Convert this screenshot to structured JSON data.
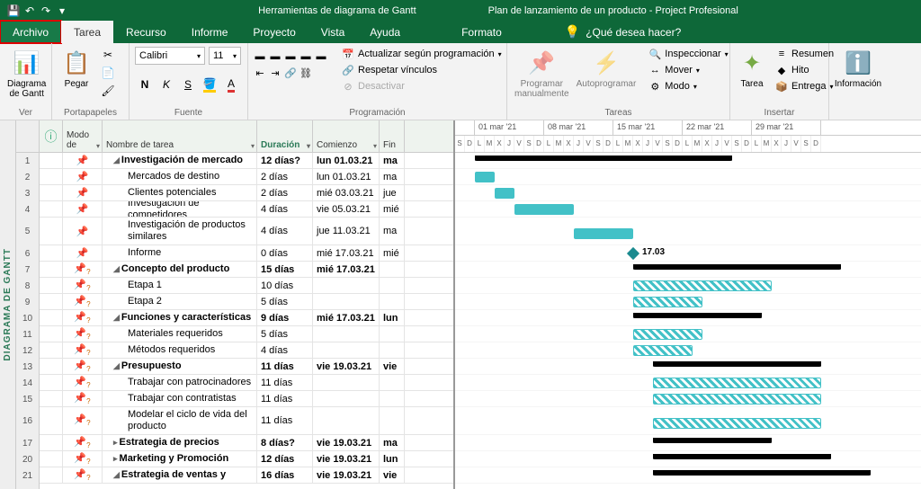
{
  "titlebar": {
    "tools_title": "Herramientas de diagrama de Gantt",
    "doc_title": "Plan de lanzamiento de un producto - Project Profesional"
  },
  "tabs": {
    "archivo": "Archivo",
    "tarea": "Tarea",
    "recurso": "Recurso",
    "informe": "Informe",
    "proyecto": "Proyecto",
    "vista": "Vista",
    "ayuda": "Ayuda",
    "formato": "Formato",
    "search": "¿Qué desea hacer?"
  },
  "ribbon": {
    "view": {
      "btn": "Diagrama de Gantt",
      "label": "Ver"
    },
    "clipboard": {
      "btn": "Pegar",
      "label": "Portapapeles"
    },
    "font": {
      "family": "Calibri",
      "size": "11",
      "label": "Fuente"
    },
    "schedule": {
      "update": "Actualizar según programación",
      "respect": "Respetar vínculos",
      "deactivate": "Desactivar",
      "label": "Programación"
    },
    "tasks": {
      "manual": "Programar manualmente",
      "auto": "Autoprogramar",
      "inspect": "Inspeccionar",
      "move": "Mover",
      "mode": "Modo",
      "label": "Tareas"
    },
    "insert": {
      "task": "Tarea",
      "summary": "Resumen",
      "milestone": "Hito",
      "deliverable": "Entrega",
      "label": "Insertar"
    },
    "info": {
      "btn": "Información"
    }
  },
  "grid": {
    "headers": {
      "mode": "Modo de",
      "name": "Nombre de tarea",
      "duration": "Duración",
      "start": "Comienzo",
      "finish": "Fin"
    },
    "rows": [
      {
        "n": "1",
        "mode": "auto",
        "name": "Investigación de mercado",
        "dur": "12 días?",
        "start": "lun 01.03.21",
        "fin": "ma",
        "bold": true,
        "indent": 0,
        "collapse": true
      },
      {
        "n": "2",
        "mode": "auto",
        "name": "Mercados de destino",
        "dur": "2 días",
        "start": "lun 01.03.21",
        "fin": "ma",
        "indent": 1
      },
      {
        "n": "3",
        "mode": "auto",
        "name": "Clientes potenciales",
        "dur": "2 días",
        "start": "mié 03.03.21",
        "fin": "jue",
        "indent": 1
      },
      {
        "n": "4",
        "mode": "auto",
        "name": "Investigación de competidores",
        "dur": "4 días",
        "start": "vie 05.03.21",
        "fin": "mié",
        "indent": 1
      },
      {
        "n": "5",
        "mode": "auto",
        "name": "Investigación de productos similares",
        "dur": "4 días",
        "start": "jue 11.03.21",
        "fin": "ma",
        "indent": 1,
        "tall": true
      },
      {
        "n": "6",
        "mode": "auto",
        "name": "Informe",
        "dur": "0 días",
        "start": "mié 17.03.21",
        "fin": "mié",
        "indent": 1
      },
      {
        "n": "7",
        "mode": "manual",
        "name": "Concepto del producto",
        "dur": "15 días",
        "start": "mié 17.03.21",
        "fin": "",
        "bold": true,
        "indent": 0,
        "collapse": true
      },
      {
        "n": "8",
        "mode": "manual",
        "name": "Etapa 1",
        "dur": "10 días",
        "start": "",
        "fin": "",
        "indent": 1
      },
      {
        "n": "9",
        "mode": "manual",
        "name": "Etapa 2",
        "dur": "5 días",
        "start": "",
        "fin": "",
        "indent": 1
      },
      {
        "n": "10",
        "mode": "manual",
        "name": "Funciones y características",
        "dur": "9 días",
        "start": "mié 17.03.21",
        "fin": "lun",
        "bold": true,
        "indent": 0,
        "collapse": true
      },
      {
        "n": "11",
        "mode": "manual",
        "name": "Materiales requeridos",
        "dur": "5 días",
        "start": "",
        "fin": "",
        "indent": 1
      },
      {
        "n": "12",
        "mode": "manual",
        "name": "Métodos requeridos",
        "dur": "4 días",
        "start": "",
        "fin": "",
        "indent": 1
      },
      {
        "n": "13",
        "mode": "manual",
        "name": "Presupuesto",
        "dur": "11 días",
        "start": "vie 19.03.21",
        "fin": "vie",
        "bold": true,
        "indent": 0,
        "collapse": true
      },
      {
        "n": "14",
        "mode": "manual",
        "name": "Trabajar con patrocinadores",
        "dur": "11 días",
        "start": "",
        "fin": "",
        "indent": 1
      },
      {
        "n": "15",
        "mode": "manual",
        "name": "Trabajar con contratistas",
        "dur": "11 días",
        "start": "",
        "fin": "",
        "indent": 1
      },
      {
        "n": "16",
        "mode": "manual",
        "name": "Modelar el ciclo de vida del producto",
        "dur": "11 días",
        "start": "",
        "fin": "",
        "indent": 1,
        "tall": true
      },
      {
        "n": "17",
        "mode": "manual",
        "name": "Estrategia de precios",
        "dur": "8 días?",
        "start": "vie 19.03.21",
        "fin": "ma",
        "bold": true,
        "indent": 0,
        "collapse": false
      },
      {
        "n": "20",
        "mode": "manual",
        "name": "Marketing y Promoción",
        "dur": "12 días",
        "start": "vie 19.03.21",
        "fin": "lun",
        "bold": true,
        "indent": 0,
        "collapse": false
      },
      {
        "n": "21",
        "mode": "manual",
        "name": "Estrategia de ventas y",
        "dur": "16 días",
        "start": "vie 19.03.21",
        "fin": "vie",
        "bold": true,
        "indent": 0,
        "collapse": true
      }
    ]
  },
  "gantt": {
    "sidebar_label": "DIAGRAMA DE GANTT",
    "day_width": 11,
    "weeks": [
      {
        "label": "",
        "days": [
          "S",
          "D"
        ]
      },
      {
        "label": "01 mar '21",
        "days": [
          "L",
          "M",
          "X",
          "J",
          "V",
          "S",
          "D"
        ]
      },
      {
        "label": "08 mar '21",
        "days": [
          "L",
          "M",
          "X",
          "J",
          "V",
          "S",
          "D"
        ]
      },
      {
        "label": "15 mar '21",
        "days": [
          "L",
          "M",
          "X",
          "J",
          "V",
          "S",
          "D"
        ]
      },
      {
        "label": "22 mar '21",
        "days": [
          "L",
          "M",
          "X",
          "J",
          "V",
          "S",
          "D"
        ]
      },
      {
        "label": "29 mar '21",
        "days": [
          "L",
          "M",
          "X",
          "J",
          "V",
          "S",
          "D"
        ]
      }
    ],
    "bars": [
      {
        "row": 0,
        "type": "red",
        "start": 2,
        "len": 12
      },
      {
        "row": 0,
        "type": "summary",
        "start": 2,
        "len": 26
      },
      {
        "row": 1,
        "type": "task",
        "start": 2,
        "len": 2
      },
      {
        "row": 2,
        "type": "task",
        "start": 4,
        "len": 2
      },
      {
        "row": 3,
        "type": "task",
        "start": 6,
        "len": 6
      },
      {
        "row": 4,
        "type": "task",
        "start": 12,
        "len": 6
      },
      {
        "row": 5,
        "type": "milestone",
        "start": 18,
        "label": "17.03"
      },
      {
        "row": 6,
        "type": "summary",
        "start": 18,
        "len": 21
      },
      {
        "row": 7,
        "type": "hatch",
        "start": 18,
        "len": 14
      },
      {
        "row": 8,
        "type": "hatch",
        "start": 18,
        "len": 7
      },
      {
        "row": 9,
        "type": "summary",
        "start": 18,
        "len": 13
      },
      {
        "row": 10,
        "type": "hatch",
        "start": 18,
        "len": 7
      },
      {
        "row": 11,
        "type": "hatch",
        "start": 18,
        "len": 6
      },
      {
        "row": 12,
        "type": "summary",
        "start": 20,
        "len": 17
      },
      {
        "row": 13,
        "type": "hatch",
        "start": 20,
        "len": 17
      },
      {
        "row": 14,
        "type": "hatch",
        "start": 20,
        "len": 17
      },
      {
        "row": 15,
        "type": "hatch",
        "start": 20,
        "len": 17
      },
      {
        "row": 16,
        "type": "summary",
        "start": 20,
        "len": 12
      },
      {
        "row": 17,
        "type": "summary",
        "start": 20,
        "len": 18
      },
      {
        "row": 18,
        "type": "summary",
        "start": 20,
        "len": 22
      }
    ],
    "colors": {
      "task": "#42c1c7",
      "summary": "#000",
      "red": "#d33",
      "milestone": "#1a8a8f"
    }
  }
}
